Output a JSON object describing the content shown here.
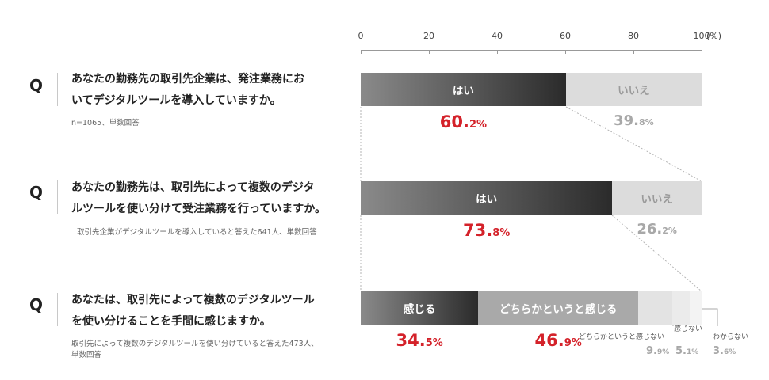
{
  "axis": {
    "ticks": [
      "0",
      "20",
      "40",
      "60",
      "80",
      "100"
    ],
    "unit": "(%)"
  },
  "questions": [
    {
      "letter": "Q",
      "line1": "あなたの勤務先の取引先企業は、発注業務にお",
      "line2": "いてデジタルツールを導入していますか。",
      "note1": "n=1065、単数回答",
      "note2": ""
    },
    {
      "letter": "Q",
      "line1": "あなたの勤務先は、取引先によって複数のデジタ",
      "line2": "ルツールを使い分けて受注業務を行っていますか。",
      "note1": "取引先企業がデジタルツールを導入していると答えた641人、単数回答",
      "note2": ""
    },
    {
      "letter": "Q",
      "line1": "あなたは、取引先によって複数のデジタルツール",
      "line2": "を使い分けることを手間に感じますか。",
      "note1": "取引先によって複数のデジタルツールを使い分けていると答えた473人、",
      "note2": "単数回答"
    }
  ],
  "chart_data": {
    "type": "bar",
    "orientation": "horizontal-stacked-100",
    "xlim": [
      0,
      100
    ],
    "xunit": "%",
    "bars": [
      {
        "segments": [
          {
            "label": "はい",
            "value": 60.2,
            "int": "60.",
            "dec": "2%",
            "style": "dark"
          },
          {
            "label": "いいえ",
            "value": 39.8,
            "int": "39.",
            "dec": "8%",
            "style": "light"
          }
        ]
      },
      {
        "segments": [
          {
            "label": "はい",
            "value": 73.8,
            "int": "73.",
            "dec": "8%",
            "style": "dark"
          },
          {
            "label": "いいえ",
            "value": 26.2,
            "int": "26.",
            "dec": "2%",
            "style": "light"
          }
        ]
      },
      {
        "segments": [
          {
            "label": "感じる",
            "value": 34.5,
            "int": "34.",
            "dec": "5%",
            "style": "dark"
          },
          {
            "label": "どちらかというと感じる",
            "value": 46.9,
            "int": "46.",
            "dec": "9%",
            "style": "mid"
          },
          {
            "label": "どちらかというと感じない",
            "value": 9.9,
            "int": "9.",
            "dec": "9%",
            "style": "pale1"
          },
          {
            "label": "感じない",
            "value": 5.1,
            "int": "5.",
            "dec": "1%",
            "style": "pale2"
          },
          {
            "label": "わからない",
            "value": 3.6,
            "int": "3.",
            "dec": "6%",
            "style": "pale3"
          }
        ]
      }
    ],
    "colors": {
      "dark_from": "#8a8a8a",
      "dark_to": "#2b2b2b",
      "mid": "#a9a9a9",
      "light": "#dcdcdc",
      "pale1": "#e3e3e3",
      "pale2": "#ebebeb",
      "pale3": "#f3f3f3",
      "highlight": "#d4222a"
    }
  }
}
